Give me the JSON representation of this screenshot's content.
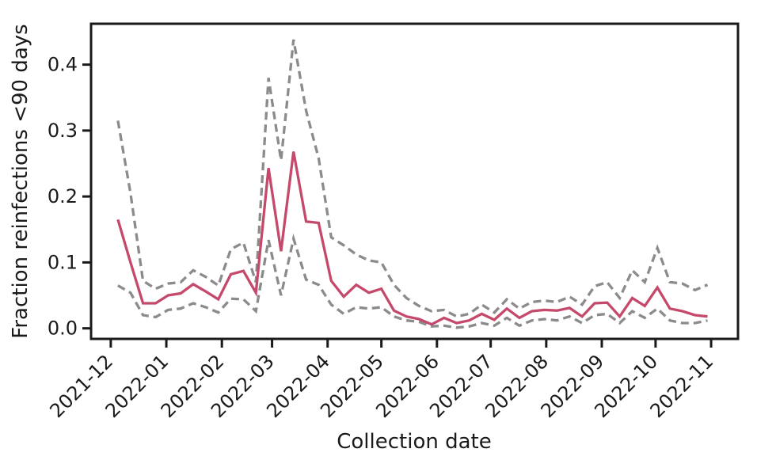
{
  "figure": {
    "background_color": "#ffffff",
    "text_color": "#1a1a1a",
    "plot_border_color": "#1a1a1a"
  },
  "chart_data": {
    "type": "line",
    "title": "",
    "xlabel": "Collection date",
    "ylabel": "Fraction reinfections <90 days",
    "grid": false,
    "legend": "none",
    "x_tick_labels": [
      "2021-12",
      "2022-01",
      "2022-02",
      "2022-03",
      "2022-04",
      "2022-05",
      "2022-06",
      "2022-07",
      "2022-08",
      "2022-09",
      "2022-10",
      "2022-11"
    ],
    "x_tick_rotation": 45,
    "y_ticks": [
      0.0,
      0.1,
      0.2,
      0.3,
      0.4
    ],
    "y_tick_labels": [
      "0.0",
      "0.1",
      "0.2",
      "0.3",
      "0.4"
    ],
    "xlim": [
      "2021-11-20",
      "2022-11-16"
    ],
    "ylim": [
      -0.016,
      0.462
    ],
    "x": [
      "2021-12-05",
      "2021-12-12",
      "2021-12-19",
      "2021-12-26",
      "2022-01-02",
      "2022-01-09",
      "2022-01-16",
      "2022-01-23",
      "2022-01-30",
      "2022-02-06",
      "2022-02-13",
      "2022-02-20",
      "2022-02-27",
      "2022-03-06",
      "2022-03-13",
      "2022-03-20",
      "2022-03-27",
      "2022-04-03",
      "2022-04-10",
      "2022-04-17",
      "2022-04-24",
      "2022-05-01",
      "2022-05-08",
      "2022-05-15",
      "2022-05-22",
      "2022-05-29",
      "2022-06-05",
      "2022-06-12",
      "2022-06-19",
      "2022-06-26",
      "2022-07-03",
      "2022-07-10",
      "2022-07-17",
      "2022-07-24",
      "2022-07-31",
      "2022-08-07",
      "2022-08-14",
      "2022-08-21",
      "2022-08-28",
      "2022-09-04",
      "2022-09-11",
      "2022-09-18",
      "2022-09-25",
      "2022-10-02",
      "2022-10-09",
      "2022-10-16",
      "2022-10-23",
      "2022-10-30"
    ],
    "series": [
      {
        "name": "upper bound (dashed)",
        "style": "dashed",
        "color": "#8b8b8b",
        "values": [
          0.315,
          0.205,
          0.072,
          0.06,
          0.068,
          0.07,
          0.088,
          0.078,
          0.065,
          0.12,
          0.13,
          0.07,
          0.38,
          0.255,
          0.438,
          0.33,
          0.258,
          0.138,
          0.126,
          0.112,
          0.103,
          0.1,
          0.066,
          0.046,
          0.034,
          0.026,
          0.028,
          0.018,
          0.022,
          0.036,
          0.024,
          0.044,
          0.03,
          0.04,
          0.042,
          0.04,
          0.048,
          0.036,
          0.064,
          0.07,
          0.046,
          0.088,
          0.07,
          0.122,
          0.07,
          0.068,
          0.058,
          0.066
        ]
      },
      {
        "name": "lower bound (dashed)",
        "style": "dashed",
        "color": "#8b8b8b",
        "values": [
          0.065,
          0.054,
          0.02,
          0.017,
          0.028,
          0.03,
          0.038,
          0.032,
          0.024,
          0.045,
          0.044,
          0.026,
          0.134,
          0.05,
          0.136,
          0.074,
          0.066,
          0.036,
          0.022,
          0.032,
          0.03,
          0.032,
          0.018,
          0.012,
          0.01,
          0.003,
          0.004,
          0.001,
          0.003,
          0.008,
          0.004,
          0.016,
          0.004,
          0.012,
          0.014,
          0.012,
          0.018,
          0.008,
          0.02,
          0.022,
          0.008,
          0.026,
          0.016,
          0.03,
          0.012,
          0.008,
          0.008,
          0.012
        ]
      },
      {
        "name": "central estimate (solid)",
        "style": "solid",
        "color": "#c5496b",
        "values": [
          0.165,
          0.1,
          0.038,
          0.038,
          0.05,
          0.053,
          0.067,
          0.056,
          0.044,
          0.082,
          0.087,
          0.054,
          0.243,
          0.117,
          0.268,
          0.162,
          0.16,
          0.072,
          0.048,
          0.066,
          0.054,
          0.06,
          0.027,
          0.018,
          0.014,
          0.006,
          0.016,
          0.008,
          0.012,
          0.022,
          0.013,
          0.03,
          0.016,
          0.026,
          0.028,
          0.027,
          0.031,
          0.018,
          0.038,
          0.039,
          0.018,
          0.046,
          0.034,
          0.062,
          0.03,
          0.026,
          0.02,
          0.018
        ]
      }
    ]
  }
}
